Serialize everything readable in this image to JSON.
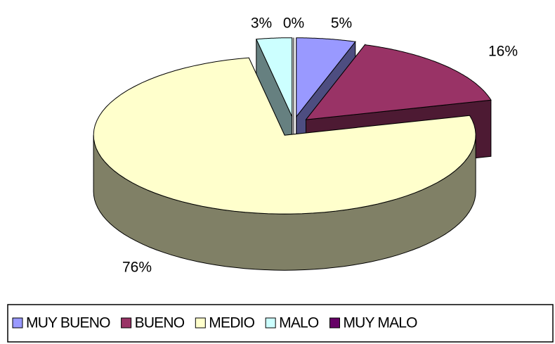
{
  "chart_data": {
    "type": "pie3d",
    "categories": [
      "MUY BUENO",
      "BUENO",
      "MEDIO",
      "MALO",
      "MUY MALO"
    ],
    "values": [
      5,
      16,
      76,
      3,
      0
    ],
    "value_labels": [
      "5%",
      "16%",
      "76%",
      "3%",
      "0%"
    ],
    "colors": [
      "#9999ff",
      "#993366",
      "#ffffcc",
      "#ccffff",
      "#660066"
    ],
    "legend": "bottom"
  }
}
